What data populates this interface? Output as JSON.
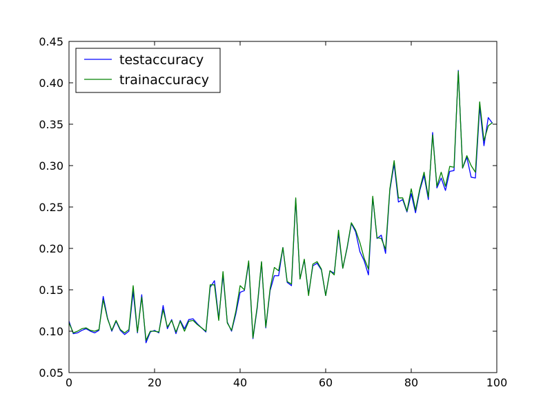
{
  "chart_data": {
    "type": "line",
    "title": "",
    "xlabel": "",
    "ylabel": "",
    "xlim": [
      0,
      100
    ],
    "ylim": [
      0.05,
      0.45
    ],
    "xticks": [
      0,
      20,
      40,
      60,
      80,
      100
    ],
    "yticks": [
      0.05,
      0.1,
      0.15,
      0.2,
      0.25,
      0.3,
      0.35,
      0.4,
      0.45
    ],
    "xtick_labels": [
      "0",
      "20",
      "40",
      "60",
      "80",
      "100"
    ],
    "ytick_labels": [
      "0.05",
      "0.10",
      "0.15",
      "0.20",
      "0.25",
      "0.30",
      "0.35",
      "0.40",
      "0.45"
    ],
    "grid": false,
    "legend_position": "top-left",
    "series": [
      {
        "name": "testaccuracy",
        "color": "#0000ff",
        "values": [
          0.112,
          0.097,
          0.098,
          0.101,
          0.103,
          0.1,
          0.098,
          0.101,
          0.142,
          0.116,
          0.1,
          0.112,
          0.101,
          0.096,
          0.1,
          0.148,
          0.098,
          0.144,
          0.086,
          0.099,
          0.101,
          0.098,
          0.131,
          0.103,
          0.114,
          0.097,
          0.113,
          0.103,
          0.114,
          0.115,
          0.109,
          0.104,
          0.099,
          0.153,
          0.161,
          0.115,
          0.168,
          0.111,
          0.1,
          0.121,
          0.147,
          0.149,
          0.183,
          0.091,
          0.128,
          0.183,
          0.104,
          0.149,
          0.167,
          0.167,
          0.201,
          0.159,
          0.155,
          0.259,
          0.163,
          0.186,
          0.145,
          0.179,
          0.182,
          0.174,
          0.143,
          0.173,
          0.17,
          0.218,
          0.176,
          0.2,
          0.23,
          0.22,
          0.196,
          0.185,
          0.168,
          0.262,
          0.212,
          0.216,
          0.194,
          0.27,
          0.302,
          0.256,
          0.259,
          0.244,
          0.266,
          0.243,
          0.27,
          0.288,
          0.259,
          0.34,
          0.273,
          0.285,
          0.27,
          0.293,
          0.294,
          0.415,
          0.297,
          0.31,
          0.286,
          0.285,
          0.371,
          0.324,
          0.358,
          0.351
        ]
      },
      {
        "name": "trainaccuracy",
        "color": "#008000",
        "values": [
          0.11,
          0.098,
          0.1,
          0.103,
          0.104,
          0.101,
          0.1,
          0.102,
          0.138,
          0.115,
          0.101,
          0.113,
          0.102,
          0.098,
          0.102,
          0.155,
          0.099,
          0.141,
          0.089,
          0.1,
          0.1,
          0.099,
          0.126,
          0.105,
          0.113,
          0.099,
          0.112,
          0.1,
          0.112,
          0.113,
          0.108,
          0.104,
          0.1,
          0.156,
          0.156,
          0.113,
          0.172,
          0.11,
          0.101,
          0.124,
          0.155,
          0.15,
          0.185,
          0.092,
          0.13,
          0.184,
          0.105,
          0.151,
          0.177,
          0.173,
          0.201,
          0.16,
          0.157,
          0.261,
          0.163,
          0.187,
          0.143,
          0.181,
          0.184,
          0.175,
          0.143,
          0.173,
          0.168,
          0.222,
          0.176,
          0.201,
          0.231,
          0.222,
          0.207,
          0.188,
          0.175,
          0.263,
          0.213,
          0.212,
          0.199,
          0.272,
          0.306,
          0.261,
          0.261,
          0.245,
          0.272,
          0.246,
          0.272,
          0.292,
          0.262,
          0.337,
          0.275,
          0.292,
          0.275,
          0.299,
          0.298,
          0.414,
          0.297,
          0.312,
          0.3,
          0.292,
          0.377,
          0.33,
          0.348,
          0.352
        ]
      }
    ]
  }
}
